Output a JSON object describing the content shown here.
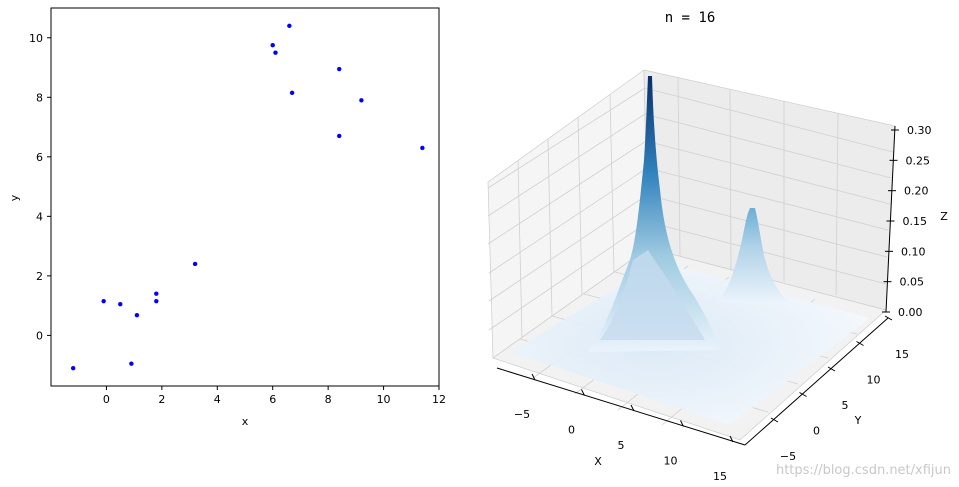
{
  "chart_data": [
    {
      "type": "scatter",
      "title": "",
      "xlabel": "x",
      "ylabel": "y",
      "xlim": [
        -2,
        12
      ],
      "ylim": [
        -1.7,
        11
      ],
      "xticks": [
        0,
        2,
        4,
        6,
        8,
        10,
        12
      ],
      "yticks": [
        0,
        2,
        4,
        6,
        8,
        10
      ],
      "marker_color": "#0000ff",
      "points": [
        {
          "x": -1.2,
          "y": -1.1
        },
        {
          "x": -0.1,
          "y": 1.15
        },
        {
          "x": 0.5,
          "y": 1.05
        },
        {
          "x": 0.9,
          "y": -0.95
        },
        {
          "x": 1.1,
          "y": 0.68
        },
        {
          "x": 1.8,
          "y": 1.4
        },
        {
          "x": 1.8,
          "y": 1.15
        },
        {
          "x": 3.2,
          "y": 2.4
        },
        {
          "x": 6.0,
          "y": 9.75
        },
        {
          "x": 6.1,
          "y": 9.5
        },
        {
          "x": 6.6,
          "y": 10.4
        },
        {
          "x": 6.7,
          "y": 8.15
        },
        {
          "x": 8.4,
          "y": 8.95
        },
        {
          "x": 8.4,
          "y": 6.7
        },
        {
          "x": 9.2,
          "y": 7.9
        },
        {
          "x": 11.4,
          "y": 6.3
        }
      ]
    },
    {
      "type": "surface3d",
      "title": "n = 16",
      "xlabel": "X",
      "ylabel": "Y",
      "zlabel": "Z",
      "xticks": [
        "−5",
        "0",
        "5",
        "10",
        "15"
      ],
      "yticks": [
        "−5",
        "0",
        "5",
        "10",
        "15"
      ],
      "zticks": [
        "0.00",
        "0.05",
        "0.10",
        "0.15",
        "0.20",
        "0.25",
        "0.30"
      ],
      "zlim": [
        0,
        0.3
      ],
      "colormap": "Blues",
      "peaks": [
        {
          "x": 0.5,
          "y": 0.5,
          "z": 0.3
        },
        {
          "x": 7.5,
          "y": 8.5,
          "z": 0.12
        }
      ]
    }
  ],
  "watermark": "https://blog.csdn.net/xfijun"
}
